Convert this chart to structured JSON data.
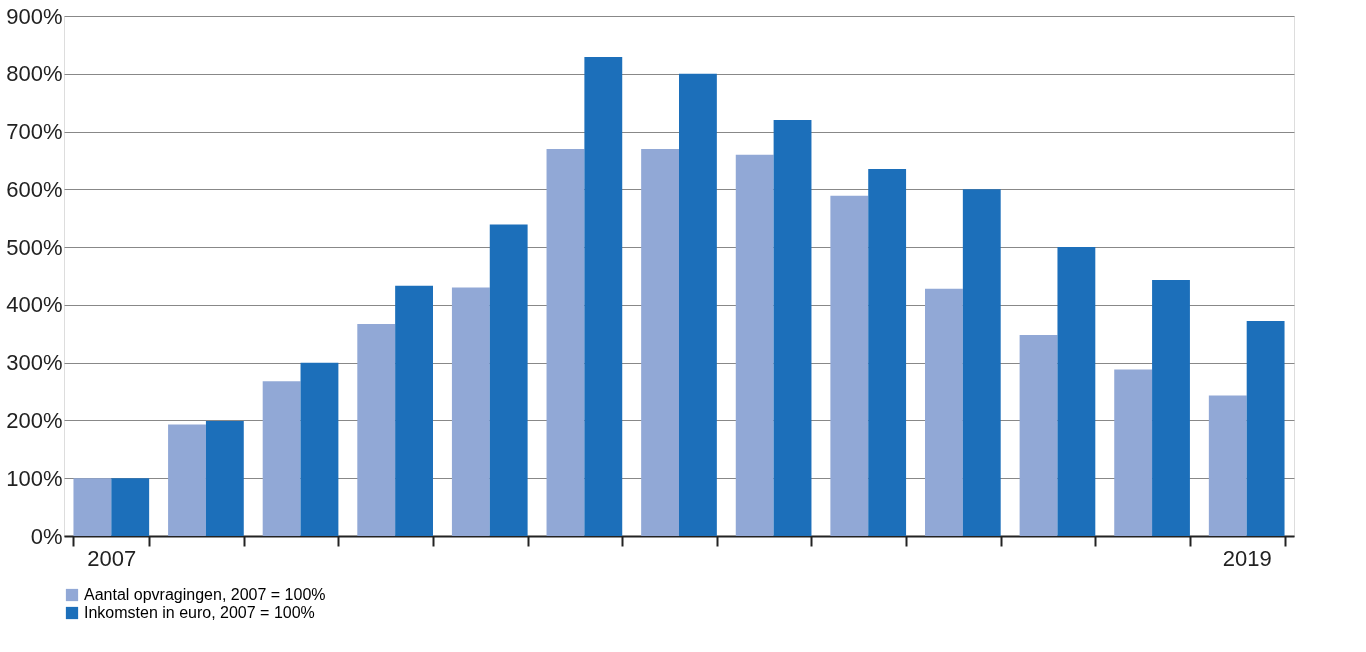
{
  "chart_data": {
    "type": "bar",
    "categories": [
      "2007",
      null,
      null,
      null,
      null,
      null,
      null,
      null,
      null,
      null,
      null,
      null,
      "2019"
    ],
    "series": [
      {
        "name": "Aantal opvragingen, 2007 = 100%",
        "color": "#91a8d6",
        "values": [
          100,
          193,
          268,
          367,
          430,
          670,
          670,
          660,
          589,
          428,
          348,
          288,
          243
        ]
      },
      {
        "name": "Inkomsten in euro, 2007 = 100%",
        "color": "#1c6fba",
        "values": [
          100,
          199,
          300,
          433,
          539,
          829,
          800,
          720,
          635,
          600,
          500,
          443,
          372
        ]
      }
    ],
    "ylim": [
      0,
      900
    ],
    "yticks": [
      {
        "value": 0,
        "label": "0%"
      },
      {
        "value": 100,
        "label": "100%"
      },
      {
        "value": 200,
        "label": "200%"
      },
      {
        "value": 300,
        "label": "300%"
      },
      {
        "value": 400,
        "label": "400%"
      },
      {
        "value": 500,
        "label": "500%"
      },
      {
        "value": 600,
        "label": "600%"
      },
      {
        "value": 700,
        "label": "700%"
      },
      {
        "value": 800,
        "label": "800%"
      },
      {
        "value": 900,
        "label": "900%"
      }
    ],
    "grid": "y",
    "legend": "bottom"
  }
}
